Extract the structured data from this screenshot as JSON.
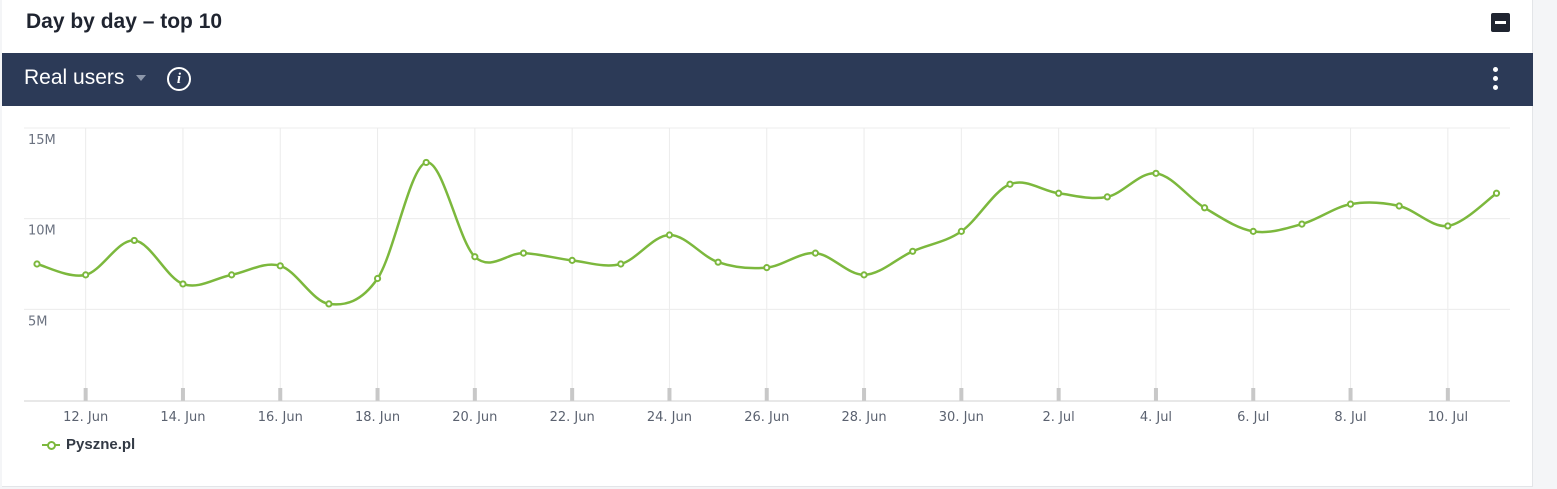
{
  "card": {
    "title": "Day by day – top 10"
  },
  "toolbar": {
    "metric_label": "Real users",
    "info_symbol": "i"
  },
  "icons": {
    "collapse": "minus-square-icon",
    "info": "info-circle-icon",
    "more": "vertical-ellipsis-icon",
    "dropdown": "caret-down-icon"
  },
  "colors": {
    "toolbar_bg": "#2c3a57",
    "series": "#7cb83d"
  },
  "chart_data": {
    "type": "line",
    "title": "",
    "xlabel": "",
    "ylabel": "",
    "x": [
      "11 Jun",
      "12 Jun",
      "13 Jun",
      "14 Jun",
      "15 Jun",
      "16 Jun",
      "17 Jun",
      "18 Jun",
      "19 Jun",
      "20 Jun",
      "21 Jun",
      "22 Jun",
      "23 Jun",
      "24 Jun",
      "25 Jun",
      "26 Jun",
      "27 Jun",
      "28 Jun",
      "29 Jun",
      "30 Jun",
      "1 Jul",
      "2 Jul",
      "3 Jul",
      "4 Jul",
      "5 Jul",
      "6 Jul",
      "7 Jul",
      "8 Jul",
      "9 Jul",
      "10 Jul",
      "11 Jul"
    ],
    "x_tick_labels": [
      "12. Jun",
      "14. Jun",
      "16. Jun",
      "18. Jun",
      "20. Jun",
      "22. Jun",
      "24. Jun",
      "26. Jun",
      "28. Jun",
      "30. Jun",
      "2. Jul",
      "4. Jul",
      "6. Jul",
      "8. Jul",
      "10. Jul"
    ],
    "y_tick_labels": [
      "15M",
      "10M",
      "5M"
    ],
    "y_ticks": [
      15000000,
      10000000,
      5000000
    ],
    "ylim": [
      0,
      15000000
    ],
    "grid": true,
    "legend_position": "bottom-left",
    "series": [
      {
        "name": "Pyszne.pl",
        "color": "#7cb83d",
        "values": [
          7500000,
          6900000,
          8800000,
          6400000,
          6900000,
          7400000,
          5300000,
          6700000,
          13100000,
          7900000,
          8100000,
          7700000,
          7500000,
          9100000,
          7600000,
          7300000,
          8100000,
          6900000,
          8200000,
          9300000,
          11900000,
          11400000,
          11200000,
          12500000,
          10600000,
          9300000,
          9700000,
          10800000,
          10700000,
          9600000,
          11400000
        ]
      }
    ]
  }
}
